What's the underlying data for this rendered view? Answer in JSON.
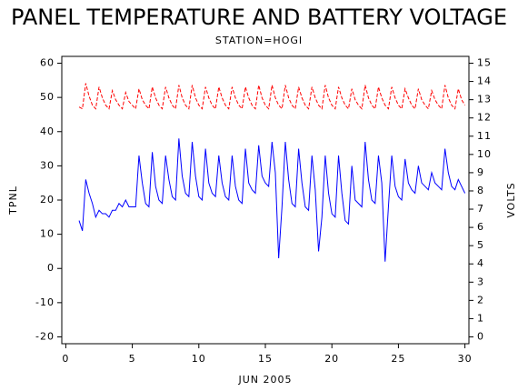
{
  "chart_data": {
    "type": "line",
    "title": "PANEL TEMPERATURE AND BATTERY VOLTAGE",
    "subtitle": "STATION=HOGI",
    "x_label": "JUN 2005",
    "y_label": "TPNL",
    "y2_label": "VOLTS",
    "xlim": [
      -0.3,
      30.3
    ],
    "xticks": [
      0,
      5,
      10,
      15,
      20,
      25,
      30
    ],
    "ylim": [
      -22,
      62
    ],
    "yticks": [
      -20,
      -10,
      0,
      10,
      20,
      30,
      40,
      50,
      60
    ],
    "y2lim": [
      -0.375,
      15.375
    ],
    "y2ticks": [
      0,
      1,
      2,
      3,
      4,
      5,
      6,
      7,
      8,
      9,
      10,
      11,
      12,
      13,
      14,
      15
    ],
    "x": [
      1,
      1.25,
      1.5,
      1.75,
      2,
      2.25,
      2.5,
      2.75,
      3,
      3.25,
      3.5,
      3.75,
      4,
      4.25,
      4.5,
      4.75,
      5,
      5.25,
      5.5,
      5.75,
      6,
      6.25,
      6.5,
      6.75,
      7,
      7.25,
      7.5,
      7.75,
      8,
      8.25,
      8.5,
      8.75,
      9,
      9.25,
      9.5,
      9.75,
      10,
      10.25,
      10.5,
      10.75,
      11,
      11.25,
      11.5,
      11.75,
      12,
      12.25,
      12.5,
      12.75,
      13,
      13.25,
      13.5,
      13.75,
      14,
      14.25,
      14.5,
      14.75,
      15,
      15.25,
      15.5,
      15.75,
      16,
      16.25,
      16.5,
      16.75,
      17,
      17.25,
      17.5,
      17.75,
      18,
      18.25,
      18.5,
      18.75,
      19,
      19.25,
      19.5,
      19.75,
      20,
      20.25,
      20.5,
      20.75,
      21,
      21.25,
      21.5,
      21.75,
      22,
      22.25,
      22.5,
      22.75,
      23,
      23.25,
      23.5,
      23.75,
      24,
      24.25,
      24.5,
      24.75,
      25,
      25.25,
      25.5,
      25.75,
      26,
      26.25,
      26.5,
      26.75,
      27,
      27.25,
      27.5,
      27.75,
      28,
      28.25,
      28.5,
      28.75,
      29,
      29.25,
      29.5,
      29.75,
      30
    ],
    "series": [
      {
        "color": "#0000ff",
        "axis": "y",
        "style": "solid",
        "values": [
          14,
          11,
          26,
          22,
          19,
          15,
          17,
          16,
          16,
          15,
          17,
          17,
          19,
          18,
          20,
          18,
          18,
          18,
          33,
          25,
          19,
          18,
          34,
          24,
          20,
          19,
          33,
          26,
          21,
          20,
          38,
          27,
          22,
          21,
          37,
          27,
          21,
          20,
          35,
          25,
          22,
          21,
          33,
          25,
          21,
          20,
          33,
          24,
          20,
          19,
          35,
          25,
          23,
          22,
          36,
          27,
          25,
          24,
          37,
          28,
          3,
          18,
          37,
          26,
          19,
          18,
          35,
          25,
          18,
          17,
          33,
          23,
          5,
          15,
          33,
          22,
          16,
          15,
          33,
          22,
          14,
          13,
          30,
          20,
          19,
          18,
          37,
          26,
          20,
          19,
          33,
          25,
          2,
          18,
          33,
          24,
          21,
          20,
          32,
          25,
          23,
          22,
          30,
          25,
          24,
          23,
          28,
          25,
          24,
          23,
          35,
          28,
          24,
          23,
          26,
          24,
          22
        ]
      },
      {
        "color": "#ff0000",
        "axis": "y2",
        "style": "dashed",
        "values": [
          12.6,
          12.5,
          13.9,
          13.2,
          12.7,
          12.5,
          13.7,
          13.1,
          12.7,
          12.5,
          13.5,
          13.0,
          12.7,
          12.5,
          13.4,
          12.9,
          12.7,
          12.5,
          13.6,
          13.0,
          12.7,
          12.5,
          13.7,
          13.1,
          12.7,
          12.5,
          13.7,
          13.1,
          12.7,
          12.5,
          13.8,
          13.1,
          12.7,
          12.5,
          13.8,
          13.1,
          12.7,
          12.5,
          13.7,
          13.1,
          12.7,
          12.5,
          13.7,
          13.1,
          12.7,
          12.5,
          13.7,
          13.1,
          12.7,
          12.5,
          13.7,
          13.1,
          12.7,
          12.5,
          13.8,
          13.1,
          12.7,
          12.5,
          13.8,
          13.1,
          12.7,
          12.5,
          13.8,
          13.1,
          12.7,
          12.5,
          13.7,
          13.1,
          12.7,
          12.5,
          13.7,
          13.1,
          12.7,
          12.5,
          13.8,
          13.1,
          12.7,
          12.5,
          13.7,
          13.1,
          12.7,
          12.5,
          13.6,
          13.0,
          12.7,
          12.5,
          13.8,
          13.1,
          12.7,
          12.5,
          13.7,
          13.1,
          12.7,
          12.5,
          13.7,
          13.1,
          12.7,
          12.5,
          13.6,
          13.1,
          12.7,
          12.5,
          13.6,
          13.0,
          12.7,
          12.5,
          13.5,
          13.0,
          12.7,
          12.5,
          13.8,
          13.1,
          12.7,
          12.5,
          13.6,
          13.0,
          12.7
        ]
      }
    ]
  }
}
